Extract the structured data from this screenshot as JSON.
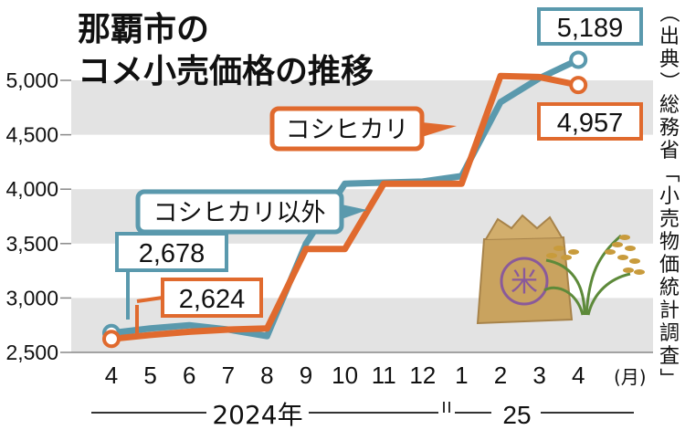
{
  "chart_data": {
    "type": "line",
    "title": [
      "那覇市の",
      "コメ小売価格の推移"
    ],
    "source": "（出典）総務省「小売物価統計調査」",
    "categories": [
      "4",
      "5",
      "6",
      "7",
      "8",
      "9",
      "10",
      "11",
      "12",
      "1",
      "2",
      "3",
      "4"
    ],
    "month_unit": "(月)",
    "year_labels": [
      "2024年",
      "25"
    ],
    "ylim": [
      2500,
      5200
    ],
    "yticks": [
      2500,
      3000,
      3500,
      4000,
      4500,
      5000
    ],
    "ytick_labels": [
      "2,500",
      "3,000",
      "3,500",
      "4,000",
      "4,500",
      "5,000"
    ],
    "series": [
      {
        "name": "コシヒカリ以外",
        "color": "#5a99ad",
        "values": [
          2678,
          2720,
          2750,
          2710,
          2650,
          3500,
          4050,
          4060,
          4070,
          4120,
          4800,
          5020,
          5189
        ],
        "start_label": "2,678",
        "end_label": "5,189"
      },
      {
        "name": "コシヒカリ",
        "color": "#e06a2e",
        "values": [
          2624,
          2660,
          2690,
          2710,
          2720,
          3450,
          3450,
          4050,
          4050,
          4050,
          5040,
          5030,
          4957
        ],
        "start_label": "2,624",
        "end_label": "4,957"
      }
    ],
    "grid": "alternating horizontal bands",
    "illustration": "rice-bag-and-rice-plant"
  }
}
